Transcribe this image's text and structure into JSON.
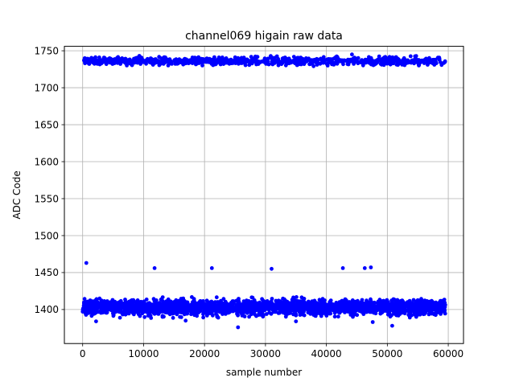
{
  "chart_data": {
    "type": "scatter",
    "title": "channel069 higain raw data",
    "xlabel": "sample number",
    "ylabel": "ADC Code",
    "xlim": [
      -3000,
      62500
    ],
    "ylim": [
      1354,
      1756
    ],
    "xticks": [
      0,
      10000,
      20000,
      30000,
      40000,
      50000,
      60000
    ],
    "yticks": [
      1400,
      1450,
      1500,
      1550,
      1600,
      1650,
      1700,
      1750
    ],
    "grid": true,
    "legend": "none",
    "marker_color": "#0000ff",
    "bands": [
      {
        "x_start": 0,
        "x_end": 59500,
        "center": 1403,
        "spread": 17
      },
      {
        "x_start": 0,
        "x_end": 59500,
        "center": 1736,
        "spread": 9
      }
    ],
    "outliers": [
      {
        "x": 600,
        "y": 1463
      },
      {
        "x": 11800,
        "y": 1456
      },
      {
        "x": 21200,
        "y": 1456
      },
      {
        "x": 31000,
        "y": 1455
      },
      {
        "x": 42700,
        "y": 1456
      },
      {
        "x": 46300,
        "y": 1456
      },
      {
        "x": 47300,
        "y": 1457
      },
      {
        "x": 25500,
        "y": 1376
      },
      {
        "x": 50800,
        "y": 1378
      },
      {
        "x": 2200,
        "y": 1384
      },
      {
        "x": 35000,
        "y": 1384
      },
      {
        "x": 47600,
        "y": 1383
      },
      {
        "x": 16900,
        "y": 1385
      },
      {
        "x": 44200,
        "y": 1745
      }
    ]
  }
}
